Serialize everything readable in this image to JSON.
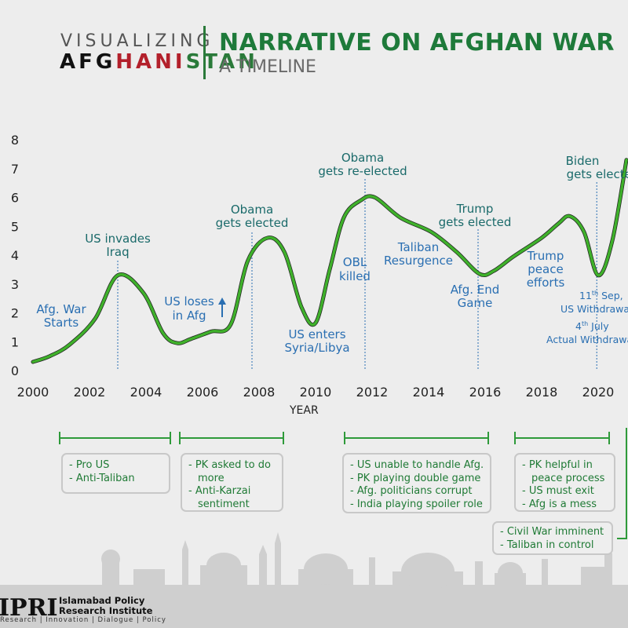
{
  "brand": {
    "line1": "VISUALIZING",
    "line2_a": "AFG",
    "line2_b": "HANI",
    "line2_c": "STAN"
  },
  "header": {
    "title": "NARRATIVE ON AFGHAN WAR",
    "subtitle": "A TIMELINE"
  },
  "colors": {
    "curve": "#3fb12b",
    "title": "#1e7a3a",
    "teal": "#1a6a6a",
    "blue": "#2a6fb2",
    "box_text": "#1f7a35"
  },
  "chart_data": {
    "type": "line",
    "title": "NARRATIVE ON AFGHAN WAR",
    "xlabel": "YEAR",
    "ylabel": "",
    "xlim": [
      2000,
      2021
    ],
    "ylim": [
      0,
      8
    ],
    "xticks": [
      "2000",
      "2002",
      "2004",
      "2006",
      "2008",
      "2010",
      "2012",
      "2014",
      "2016",
      "2018",
      "2020"
    ],
    "yticks": [
      "0",
      "1",
      "2",
      "3",
      "4",
      "5",
      "6",
      "7",
      "8"
    ],
    "grid": false,
    "series": [
      {
        "x": [
          2000,
          2000.6,
          2001.3,
          2002.2,
          2003.0,
          2003.9,
          2004.6,
          2005.1,
          2005.6,
          2006.3,
          2007.0,
          2007.6,
          2008.3,
          2008.9,
          2009.5,
          2010.0,
          2010.5,
          2011.0,
          2011.6,
          2012.1,
          2013.0,
          2014.1,
          2015.0,
          2015.8,
          2016.3,
          2017.0,
          2018.0,
          2018.6,
          2019.0,
          2019.5,
          2020.0,
          2020.5,
          2021.0
        ],
        "values": [
          0.3,
          0.5,
          0.9,
          1.8,
          3.3,
          2.7,
          1.3,
          0.95,
          1.1,
          1.35,
          1.6,
          3.8,
          4.6,
          4.1,
          2.2,
          1.65,
          3.5,
          5.3,
          5.9,
          6.0,
          5.3,
          4.8,
          4.1,
          3.35,
          3.45,
          3.95,
          4.6,
          5.1,
          5.35,
          4.8,
          3.3,
          4.5,
          7.3
        ]
      }
    ],
    "annotations": [
      {
        "text_lines": [
          "Afg. War",
          "Starts"
        ],
        "x": 2001
      },
      {
        "text_lines": [
          "US invades",
          "Iraq"
        ],
        "x": 2003
      },
      {
        "text_lines": [
          "US loses",
          "in Afg"
        ],
        "x": 2006.5
      },
      {
        "text_lines": [
          "Obama",
          "gets elected"
        ],
        "x": 2008
      },
      {
        "text_lines": [
          "US enters",
          "Syria/Libya"
        ],
        "x": 2010
      },
      {
        "text_lines": [
          "OBL",
          "killed"
        ],
        "x": 2011
      },
      {
        "text_lines": [
          "Obama",
          "gets re-elected"
        ],
        "x": 2012
      },
      {
        "text_lines": [
          "Taliban",
          "Resurgence"
        ],
        "x": 2014
      },
      {
        "text_lines": [
          "Trump",
          "gets elected"
        ],
        "x": 2016
      },
      {
        "text_lines": [
          "Afg. End",
          "Game"
        ],
        "x": 2016
      },
      {
        "text_lines": [
          "Trump",
          "peace",
          "efforts"
        ],
        "x": 2018
      },
      {
        "text_lines": [
          "Biden",
          "gets elected"
        ],
        "x": 2020
      },
      {
        "text_lines": [
          "11th Sep,",
          "US Withdrawal"
        ],
        "x": 2021
      },
      {
        "text_lines": [
          "4th July",
          "Actual Withdrawal"
        ],
        "x": 2021
      }
    ]
  },
  "annotations_text": {
    "afg_war_1": "Afg. War",
    "afg_war_2": "Starts",
    "iraq_1": "US invades",
    "iraq_2": "Iraq",
    "loses_1": "US loses",
    "loses_2": "in Afg",
    "obama_1": "Obama",
    "obama_2": "gets elected",
    "syria_1": "US enters",
    "syria_2": "Syria/Libya",
    "obl_1": "OBL",
    "obl_2": "killed",
    "reelect_1": "Obama",
    "reelect_2": "gets re-elected",
    "taliban_1": "Taliban",
    "taliban_2": "Resurgence",
    "trump_1": "Trump",
    "trump_2": "gets elected",
    "endgame_1": "Afg. End",
    "endgame_2": "Game",
    "peace_1": "Trump",
    "peace_2": "peace",
    "peace_3": "efforts",
    "biden_1": "Biden",
    "biden_2": "gets elected",
    "sep_day": "11",
    "sep_sup": "th",
    "sep_rest": " Sep,",
    "sep_2": "US Withdrawal",
    "july_day": "4",
    "july_sup": "th",
    "july_rest": " July",
    "july_2": "Actual Withdrawal"
  },
  "phases": [
    {
      "lines": [
        "- Pro US",
        "- Anti-Taliban"
      ]
    },
    {
      "lines": [
        "- PK asked to do",
        "  more",
        "- Anti-Karzai",
        "  sentiment"
      ]
    },
    {
      "lines": [
        "- US unable to handle Afg.",
        "- PK playing double game",
        "- Afg. politicians corrupt",
        "- India playing spoiler role"
      ]
    },
    {
      "lines": [
        "- PK helpful in",
        "  peace process",
        "- US must exit",
        "- Afg is a mess"
      ]
    },
    {
      "lines": [
        "- Civil War imminent",
        "- Taliban in control"
      ]
    }
  ],
  "footer": {
    "logo": "IPRI",
    "org_line1": "Islamabad Policy",
    "org_line2": "Research Institute",
    "tagline": "Research | Innovation | Dialogue | Policy"
  }
}
